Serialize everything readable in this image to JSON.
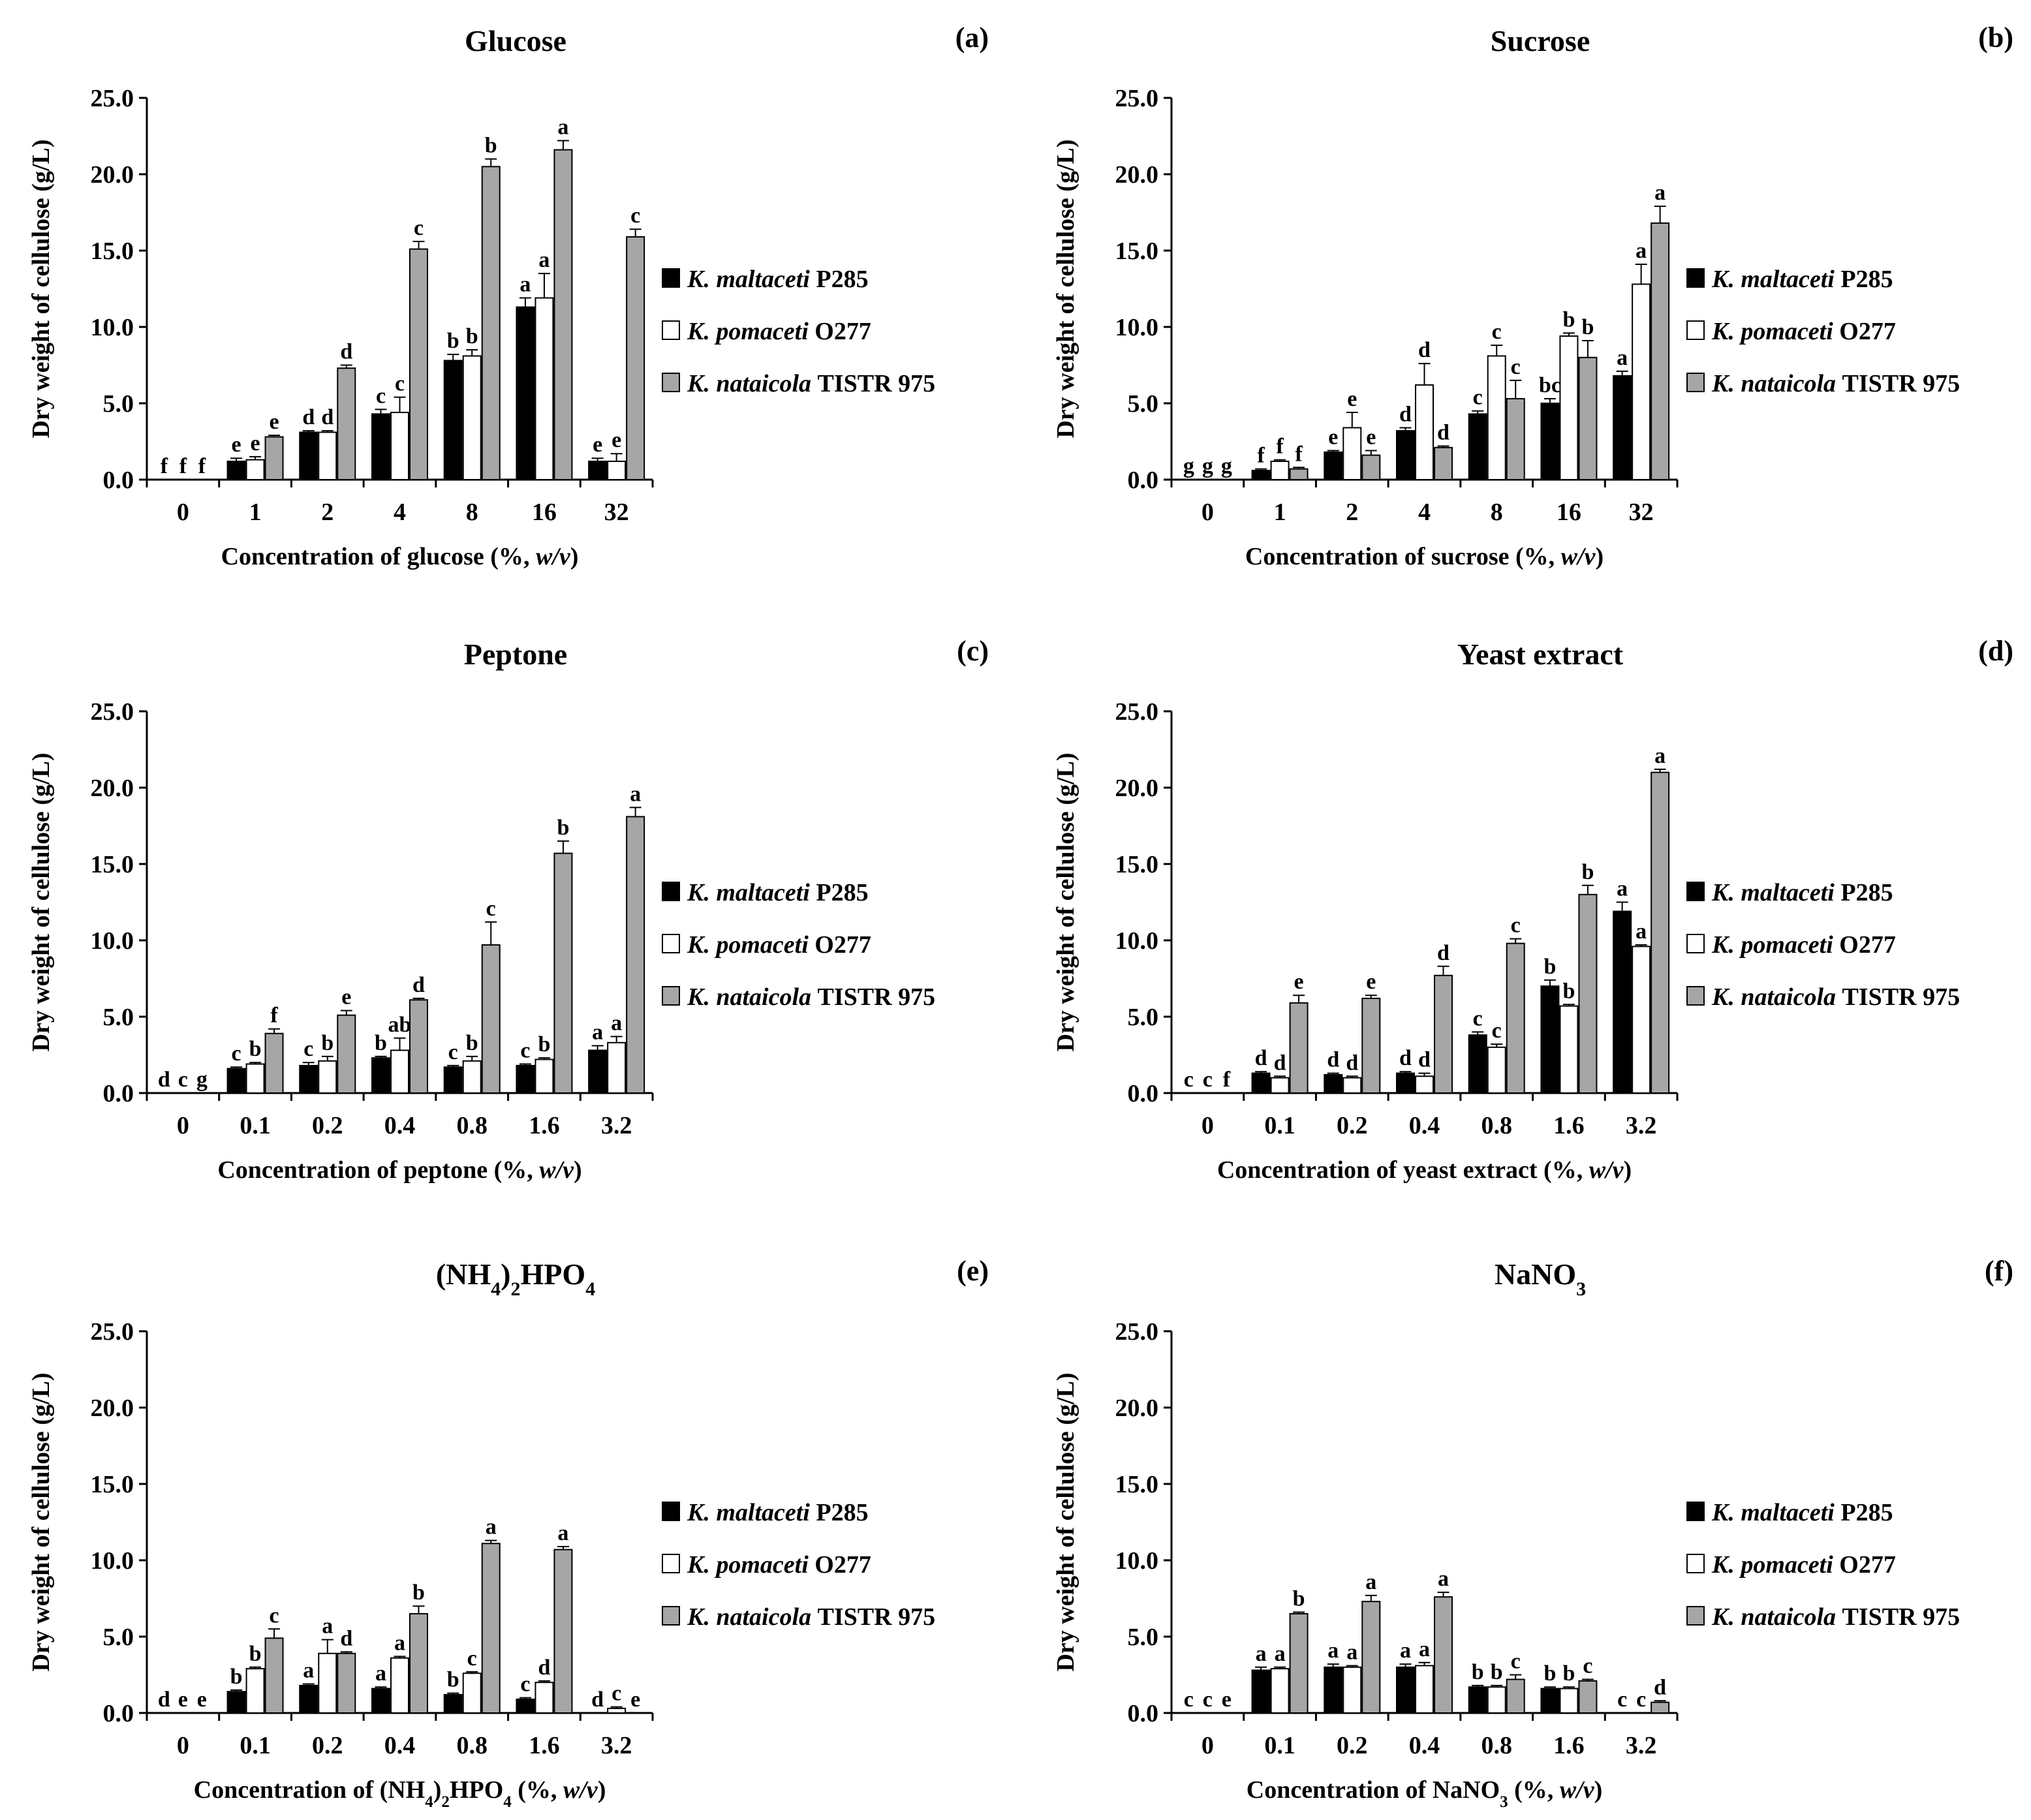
{
  "figure": {
    "legend": [
      {
        "species": "K. maltaceti",
        "strain": "P285",
        "color": "#000000"
      },
      {
        "species": "K. pomaceti",
        "strain": "O277",
        "color": "#ffffff"
      },
      {
        "species": "K. nataicola",
        "strain": "TISTR 975",
        "color": "#a6a6a6"
      }
    ],
    "ylabel": "Dry weight of cellulose (g/L)",
    "yticks": [
      "0.0",
      "5.0",
      "10.0",
      "15.0",
      "20.0",
      "25.0"
    ]
  },
  "chart_data": [
    {
      "type": "bar",
      "panel": "(a)",
      "title": "Glucose",
      "title_parts": [
        {
          "t": "Glucose"
        }
      ],
      "xlabel_parts": [
        {
          "t": "Concentration of glucose (%, "
        },
        {
          "t": "w/v",
          "italic": true
        },
        {
          "t": ")"
        }
      ],
      "ylabel": "Dry weight of cellulose (g/L)",
      "ylim": [
        0,
        25
      ],
      "categories": [
        "0",
        "1",
        "2",
        "4",
        "8",
        "16",
        "32"
      ],
      "series": [
        {
          "name": "K. maltaceti P285",
          "values": [
            0,
            1.2,
            3.1,
            4.3,
            7.8,
            11.3,
            1.2
          ],
          "errors": [
            0,
            0.2,
            0.1,
            0.3,
            0.4,
            0.6,
            0.2
          ],
          "letters": [
            "f",
            "e",
            "d",
            "c",
            "b",
            "a",
            "e"
          ]
        },
        {
          "name": "K. pomaceti O277",
          "values": [
            0,
            1.3,
            3.1,
            4.4,
            8.1,
            11.9,
            1.2
          ],
          "errors": [
            0,
            0.2,
            0.1,
            1.0,
            0.4,
            1.6,
            0.5
          ],
          "letters": [
            "f",
            "e",
            "d",
            "c",
            "b",
            "a",
            "e"
          ]
        },
        {
          "name": "K. nataicola TISTR 975",
          "values": [
            0,
            2.8,
            7.3,
            15.1,
            20.5,
            21.6,
            15.9
          ],
          "errors": [
            0,
            0.1,
            0.2,
            0.5,
            0.5,
            0.6,
            0.5
          ],
          "letters": [
            "f",
            "e",
            "d",
            "c",
            "b",
            "a",
            "c"
          ]
        }
      ]
    },
    {
      "type": "bar",
      "panel": "(b)",
      "title": "Sucrose",
      "title_parts": [
        {
          "t": "Sucrose"
        }
      ],
      "xlabel_parts": [
        {
          "t": "Concentration of sucrose (%, "
        },
        {
          "t": "w/v",
          "italic": true
        },
        {
          "t": ")"
        }
      ],
      "ylabel": "Dry weight of cellulose (g/L)",
      "ylim": [
        0,
        25
      ],
      "categories": [
        "0",
        "1",
        "2",
        "4",
        "8",
        "16",
        "32"
      ],
      "series": [
        {
          "name": "K. maltaceti P285",
          "values": [
            0,
            0.6,
            1.8,
            3.2,
            4.3,
            5.0,
            6.8
          ],
          "errors": [
            0,
            0.1,
            0.1,
            0.2,
            0.2,
            0.3,
            0.3
          ],
          "letters": [
            "g",
            "f",
            "e",
            "d",
            "c",
            "bc",
            "a"
          ]
        },
        {
          "name": "K. pomaceti O277",
          "values": [
            0,
            1.2,
            3.4,
            6.2,
            8.1,
            9.4,
            12.8
          ],
          "errors": [
            0,
            0.1,
            1.0,
            1.4,
            0.7,
            0.2,
            1.3
          ],
          "letters": [
            "g",
            "f",
            "e",
            "d",
            "c",
            "b",
            "a"
          ]
        },
        {
          "name": "K. nataicola TISTR 975",
          "values": [
            0,
            0.7,
            1.6,
            2.1,
            5.3,
            8.0,
            16.8
          ],
          "errors": [
            0,
            0.1,
            0.3,
            0.1,
            1.2,
            1.1,
            1.1
          ],
          "letters": [
            "g",
            "f",
            "e",
            "d",
            "c",
            "b",
            "a"
          ]
        }
      ]
    },
    {
      "type": "bar",
      "panel": "(c)",
      "title": "Peptone",
      "title_parts": [
        {
          "t": "Peptone"
        }
      ],
      "xlabel_parts": [
        {
          "t": "Concentration of peptone (%, "
        },
        {
          "t": "w/v",
          "italic": true
        },
        {
          "t": ")"
        }
      ],
      "ylabel": "Dry weight of cellulose (g/L)",
      "ylim": [
        0,
        25
      ],
      "categories": [
        "0",
        "0.1",
        "0.2",
        "0.4",
        "0.8",
        "1.6",
        "3.2"
      ],
      "series": [
        {
          "name": "K. maltaceti P285",
          "values": [
            0,
            1.6,
            1.8,
            2.3,
            1.7,
            1.8,
            2.8
          ],
          "errors": [
            0,
            0.1,
            0.2,
            0.1,
            0.1,
            0.1,
            0.3
          ],
          "letters": [
            "d",
            "c",
            "c",
            "b",
            "c",
            "c",
            "a"
          ]
        },
        {
          "name": "K. pomaceti O277",
          "values": [
            0,
            1.9,
            2.1,
            2.8,
            2.1,
            2.2,
            3.3
          ],
          "errors": [
            0,
            0.1,
            0.3,
            0.8,
            0.3,
            0.1,
            0.4
          ],
          "letters": [
            "c",
            "b",
            "b",
            "ab",
            "b",
            "b",
            "a"
          ]
        },
        {
          "name": "K. nataicola TISTR 975",
          "values": [
            0,
            3.9,
            5.1,
            6.1,
            9.7,
            15.7,
            18.1
          ],
          "errors": [
            0,
            0.3,
            0.3,
            0.1,
            1.5,
            0.8,
            0.6
          ],
          "letters": [
            "g",
            "f",
            "e",
            "d",
            "c",
            "b",
            "a"
          ]
        }
      ]
    },
    {
      "type": "bar",
      "panel": "(d)",
      "title": "Yeast extract",
      "title_parts": [
        {
          "t": "Yeast extract"
        }
      ],
      "xlabel_parts": [
        {
          "t": "Concentration of yeast extract (%, "
        },
        {
          "t": "w/v",
          "italic": true
        },
        {
          "t": ")"
        }
      ],
      "ylabel": "Dry weight of cellulose (g/L)",
      "ylim": [
        0,
        25
      ],
      "categories": [
        "0",
        "0.1",
        "0.2",
        "0.4",
        "0.8",
        "1.6",
        "3.2"
      ],
      "series": [
        {
          "name": "K. maltaceti P285",
          "values": [
            0,
            1.3,
            1.2,
            1.3,
            3.8,
            7.0,
            11.9
          ],
          "errors": [
            0,
            0.1,
            0.1,
            0.1,
            0.2,
            0.4,
            0.6
          ],
          "letters": [
            "c",
            "d",
            "d",
            "d",
            "c",
            "b",
            "a"
          ]
        },
        {
          "name": "K. pomaceti O277",
          "values": [
            0,
            1.0,
            1.0,
            1.1,
            3.0,
            5.7,
            9.6
          ],
          "errors": [
            0,
            0.1,
            0.1,
            0.2,
            0.2,
            0.1,
            0.1
          ],
          "letters": [
            "c",
            "d",
            "d",
            "d",
            "c",
            "b",
            "a"
          ]
        },
        {
          "name": "K. nataicola TISTR 975",
          "values": [
            0,
            5.9,
            6.2,
            7.7,
            9.8,
            13.0,
            21.0
          ],
          "errors": [
            0,
            0.5,
            0.2,
            0.6,
            0.3,
            0.6,
            0.2
          ],
          "letters": [
            "f",
            "e",
            "e",
            "d",
            "c",
            "b",
            "a"
          ]
        }
      ]
    },
    {
      "type": "bar",
      "panel": "(e)",
      "title": "(NH4)2HPO4",
      "title_parts": [
        {
          "t": "(NH"
        },
        {
          "t": "4",
          "sub": true
        },
        {
          "t": ")"
        },
        {
          "t": "2",
          "sub": true
        },
        {
          "t": "HPO"
        },
        {
          "t": "4",
          "sub": true
        }
      ],
      "xlabel_parts": [
        {
          "t": "Concentration of (NH"
        },
        {
          "t": "4",
          "sub": true
        },
        {
          "t": ")"
        },
        {
          "t": "2",
          "sub": true
        },
        {
          "t": "HPO"
        },
        {
          "t": "4",
          "sub": true
        },
        {
          "t": " (%, "
        },
        {
          "t": "w/v",
          "italic": true
        },
        {
          "t": ")"
        }
      ],
      "ylabel": "Dry weight of cellulose (g/L)",
      "ylim": [
        0,
        25
      ],
      "categories": [
        "0",
        "0.1",
        "0.2",
        "0.4",
        "0.8",
        "1.6",
        "3.2"
      ],
      "series": [
        {
          "name": "K. maltaceti P285",
          "values": [
            0,
            1.4,
            1.8,
            1.6,
            1.2,
            0.9,
            0
          ],
          "errors": [
            0,
            0.1,
            0.1,
            0.1,
            0.1,
            0.1,
            0
          ],
          "letters": [
            "d",
            "b",
            "a",
            "a",
            "b",
            "c",
            "d"
          ]
        },
        {
          "name": "K. pomaceti O277",
          "values": [
            0,
            2.9,
            3.9,
            3.6,
            2.6,
            2.0,
            0.3
          ],
          "errors": [
            0,
            0.1,
            0.9,
            0.1,
            0.1,
            0.1,
            0.1
          ],
          "letters": [
            "e",
            "b",
            "a",
            "a",
            "c",
            "d",
            "c"
          ]
        },
        {
          "name": "K. nataicola TISTR 975",
          "values": [
            0,
            4.9,
            3.9,
            6.5,
            11.1,
            10.7,
            0
          ],
          "errors": [
            0,
            0.6,
            0.1,
            0.5,
            0.2,
            0.2,
            0
          ],
          "letters": [
            "e",
            "c",
            "d",
            "b",
            "a",
            "a",
            "e"
          ]
        }
      ]
    },
    {
      "type": "bar",
      "panel": "(f)",
      "title": "NaNO3",
      "title_parts": [
        {
          "t": "NaNO"
        },
        {
          "t": "3",
          "sub": true
        }
      ],
      "xlabel_parts": [
        {
          "t": "Concentration of NaNO"
        },
        {
          "t": "3",
          "sub": true
        },
        {
          "t": " (%, "
        },
        {
          "t": "w/v",
          "italic": true
        },
        {
          "t": ")"
        }
      ],
      "ylabel": "Dry weight of cellulose (g/L)",
      "ylim": [
        0,
        25
      ],
      "categories": [
        "0",
        "0.1",
        "0.2",
        "0.4",
        "0.8",
        "1.6",
        "3.2"
      ],
      "series": [
        {
          "name": "K. maltaceti P285",
          "values": [
            0,
            2.8,
            3.0,
            3.0,
            1.7,
            1.6,
            0
          ],
          "errors": [
            0,
            0.2,
            0.2,
            0.2,
            0.1,
            0.1,
            0
          ],
          "letters": [
            "c",
            "a",
            "a",
            "a",
            "b",
            "b",
            "c"
          ]
        },
        {
          "name": "K. pomaceti O277",
          "values": [
            0,
            2.9,
            3.0,
            3.1,
            1.7,
            1.6,
            0
          ],
          "errors": [
            0,
            0.1,
            0.1,
            0.2,
            0.1,
            0.1,
            0
          ],
          "letters": [
            "c",
            "a",
            "a",
            "a",
            "b",
            "b",
            "c"
          ]
        },
        {
          "name": "K. nataicola TISTR 975",
          "values": [
            0,
            6.5,
            7.3,
            7.6,
            2.2,
            2.1,
            0.7
          ],
          "errors": [
            0,
            0.1,
            0.4,
            0.3,
            0.3,
            0.1,
            0.1
          ],
          "letters": [
            "e",
            "b",
            "a",
            "a",
            "c",
            "c",
            "d"
          ]
        }
      ]
    }
  ]
}
